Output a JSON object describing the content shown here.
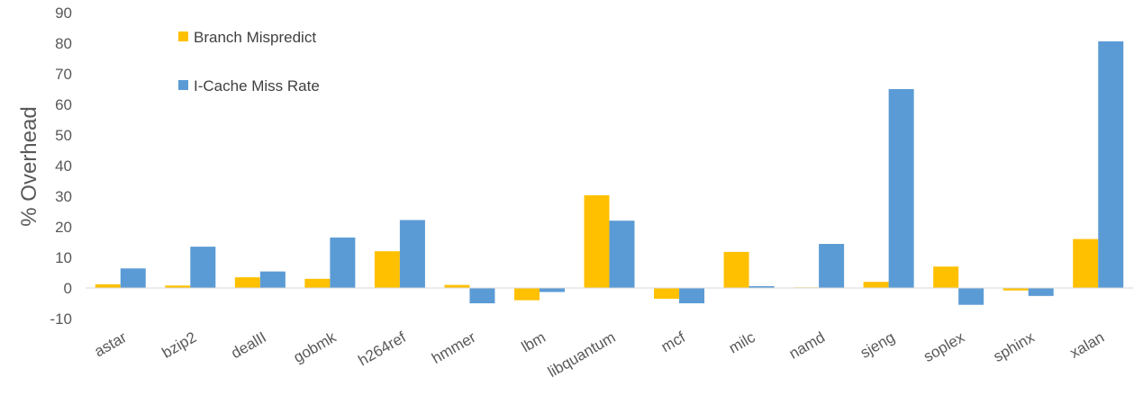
{
  "chart_data": {
    "type": "bar",
    "title": "",
    "xlabel": "",
    "ylabel": "% Overhead",
    "ylim": [
      -10,
      90
    ],
    "yticks": [
      -10,
      0,
      10,
      20,
      30,
      40,
      50,
      60,
      70,
      80,
      90
    ],
    "grid": false,
    "legend_position": "top-left",
    "categories": [
      "astar",
      "bzip2",
      "dealII",
      "gobmk",
      "h264ref",
      "hmmer",
      "lbm",
      "libquantum",
      "mcf",
      "milc",
      "namd",
      "sjeng",
      "soplex",
      "sphinx",
      "xalan"
    ],
    "series": [
      {
        "name": "Branch Mispredict",
        "color": "#FFC000",
        "values": [
          1.2,
          0.8,
          3.5,
          3.0,
          12.0,
          1.0,
          -4.0,
          30.3,
          -3.5,
          11.8,
          0.2,
          2.0,
          7.0,
          -0.8,
          16.0
        ]
      },
      {
        "name": "I-Cache Miss Rate",
        "color": "#5B9BD5",
        "values": [
          6.4,
          13.5,
          5.4,
          16.5,
          22.2,
          -5.0,
          -1.3,
          22.0,
          -5.0,
          0.6,
          14.4,
          65.0,
          -5.5,
          -2.6,
          80.6
        ]
      }
    ]
  }
}
